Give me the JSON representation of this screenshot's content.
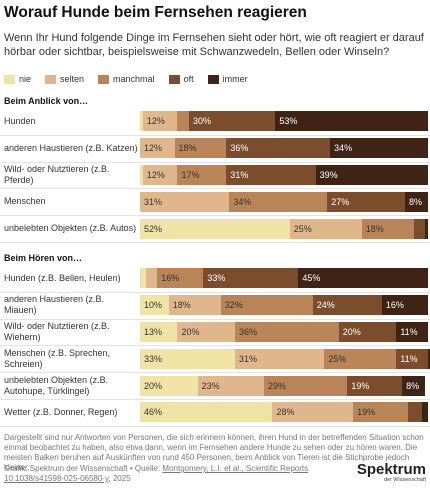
{
  "header": {
    "title": "Worauf Hunde beim Fernsehen reagieren",
    "subtitle": "Wenn Ihr Hund folgende Dinge im Fernsehen sieht oder hört, wie oft reagiert er darauf hörbar oder sichtbar, beispielsweise mit Schwanzwedeln, Bellen oder Winseln?"
  },
  "legend": [
    {
      "name": "nie",
      "color": "#efe3a6"
    },
    {
      "name": "selten",
      "color": "#e0b78c"
    },
    {
      "name": "manchmal",
      "color": "#b98558"
    },
    {
      "name": "oft",
      "color": "#7b4d2c"
    },
    {
      "name": "immer",
      "color": "#3f2415"
    }
  ],
  "chart_data": [
    {
      "type": "bar",
      "orientation": "horizontal",
      "stacked": true,
      "title": "Beim Anblick von…",
      "xlim": [
        0,
        100
      ],
      "categories": [
        "Hunden",
        "anderen Haustieren (z.B. Katzen)",
        "Wild- oder Nutztieren (z.B. Pferde)",
        "Menschen",
        "unbelebten Objekten (z.B. Autos)"
      ],
      "series": [
        {
          "values": [
            1,
            0,
            1,
            0,
            52
          ],
          "value_labels": [
            null,
            null,
            null,
            null,
            "52%"
          ]
        },
        {
          "values": [
            12,
            12,
            12,
            31,
            25
          ],
          "value_labels": [
            "12%",
            "12%",
            "12%",
            "31%",
            "25%"
          ]
        },
        {
          "values": [
            4,
            18,
            17,
            34,
            18
          ],
          "value_labels": [
            null,
            "18%",
            "17%",
            "34%",
            "18%"
          ]
        },
        {
          "values": [
            30,
            36,
            31,
            27,
            4
          ],
          "value_labels": [
            "30%",
            "36%",
            "31%",
            "27%",
            null
          ]
        },
        {
          "values": [
            53,
            34,
            39,
            8,
            1
          ],
          "value_labels": [
            "53%",
            "34%",
            "39%",
            "8%",
            null
          ]
        }
      ]
    },
    {
      "type": "bar",
      "orientation": "horizontal",
      "stacked": true,
      "title": "Beim Hören von…",
      "xlim": [
        0,
        100
      ],
      "categories": [
        "Hunden (z.B. Bellen, Heulen)",
        "anderen Haustieren (z.B. Miauen)",
        "Wild- oder Nutztieren (z.B. Wiehern)",
        "Menschen (z.B. Sprechen, Schreien)",
        "unbelebten Objekten (z.B. Autohupe, Türklingel)",
        "Wetter (z.B. Donner, Regen)"
      ],
      "series": [
        {
          "values": [
            2,
            10,
            13,
            33,
            20,
            46
          ],
          "value_labels": [
            null,
            "10%",
            "13%",
            "33%",
            "20%",
            "46%"
          ]
        },
        {
          "values": [
            4,
            18,
            20,
            31,
            23,
            28
          ],
          "value_labels": [
            null,
            "18%",
            "20%",
            "31%",
            "23%",
            "28%"
          ]
        },
        {
          "values": [
            16,
            32,
            36,
            25,
            29,
            19
          ],
          "value_labels": [
            "16%",
            "32%",
            "36%",
            "25%",
            "29%",
            "19%"
          ]
        },
        {
          "values": [
            33,
            24,
            20,
            11,
            19,
            5
          ],
          "value_labels": [
            "33%",
            "24%",
            "20%",
            "11%",
            "19%",
            null
          ]
        },
        {
          "values": [
            45,
            16,
            11,
            1,
            8,
            2
          ],
          "value_labels": [
            "45%",
            "16%",
            "11%",
            null,
            "8%",
            null
          ]
        }
      ]
    }
  ],
  "footer": {
    "note": "Dargestellt sind nur Antworten von Personen, die sich erinnern können, ihren Hund in der betreffenden Situation schon einmal beobachtet zu haben, also etwa dann, wenn im Fernsehen andere Hunde zu sehen oder zu hören waren. Die meisten Balken beruhen auf Auskünften von rund 450 Personen; beim Anblick von Tieren ist die Stichprobe jedoch kleiner.",
    "credit": "Grafik: Spektrum der Wissenschaft • Quelle:",
    "source_link": "Montgomery, L.I. et al., Scientific Reports 10.1038/s41598-025-06580-y",
    "source_suffix": ", 2025",
    "logo_main": "Spektrum",
    "logo_sub": "der Wissenschaft"
  }
}
